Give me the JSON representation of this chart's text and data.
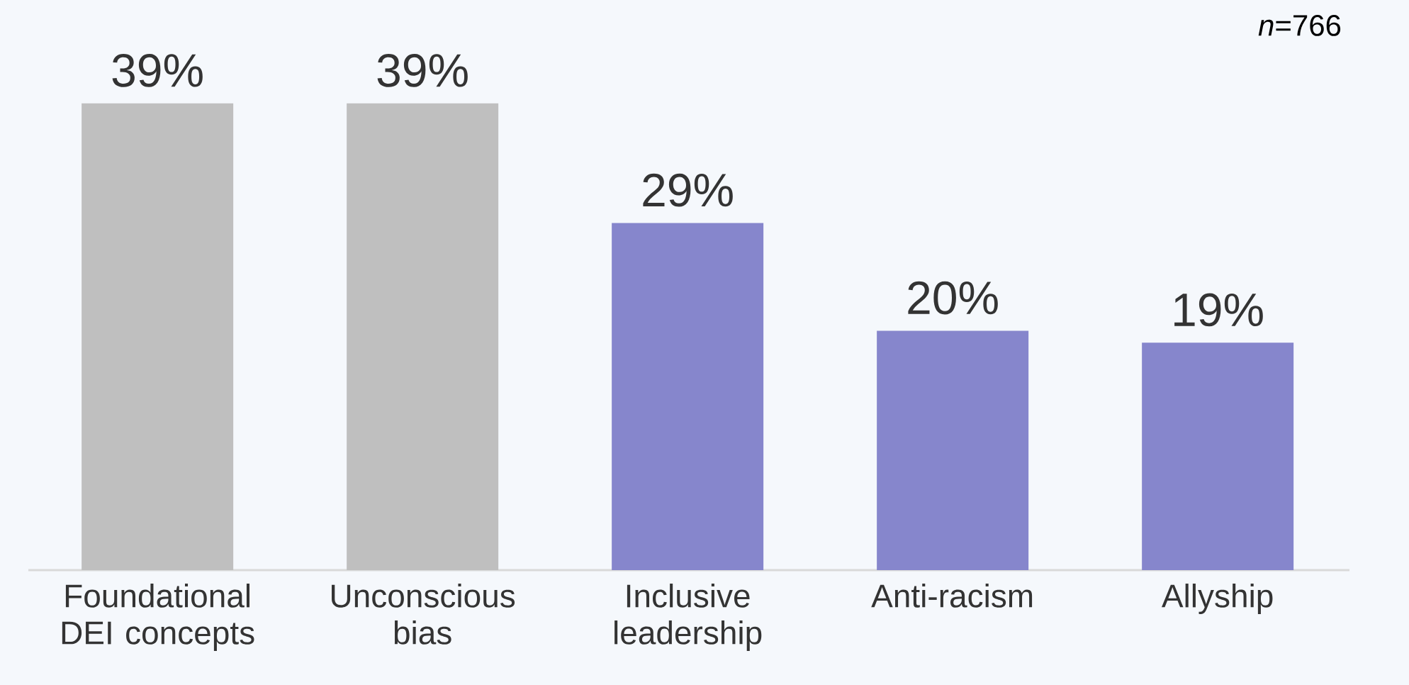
{
  "chart_data": {
    "type": "bar",
    "categories": [
      "Foundational DEI concepts",
      "Unconscious bias",
      "Inclusive leadership",
      "Anti-racism",
      "Allyship"
    ],
    "values": [
      39,
      39,
      29,
      20,
      19
    ],
    "colors": [
      "#bfbfbf",
      "#bfbfbf",
      "#8686cc",
      "#8686cc",
      "#8686cc"
    ],
    "value_labels": [
      "39%",
      "39%",
      "29%",
      "20%",
      "19%"
    ],
    "annotations": [
      "*n*=766"
    ]
  }
}
